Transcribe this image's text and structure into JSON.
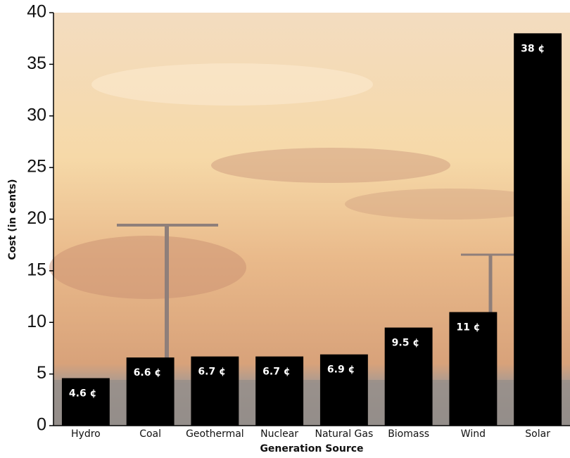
{
  "chart_data": {
    "type": "bar",
    "x_label": "Generation Source",
    "y_label": "Cost (in cents)",
    "categories": [
      "Hydro",
      "Coal",
      "Geothermal",
      "Nuclear",
      "Natural Gas",
      "Biomass",
      "Wind",
      "Solar"
    ],
    "values": [
      4.6,
      6.6,
      6.7,
      6.7,
      6.9,
      9.5,
      11,
      38
    ],
    "value_labels": [
      "4.6 ¢",
      "6.6 ¢",
      "6.7 ¢",
      "6.7 ¢",
      "6.9 ¢",
      "9.5 ¢",
      "11 ¢",
      "38 ¢"
    ],
    "color": "#000000",
    "ylim": [
      0,
      40
    ],
    "yticks": [
      0,
      5,
      10,
      15,
      20,
      25,
      30,
      35,
      40
    ]
  }
}
